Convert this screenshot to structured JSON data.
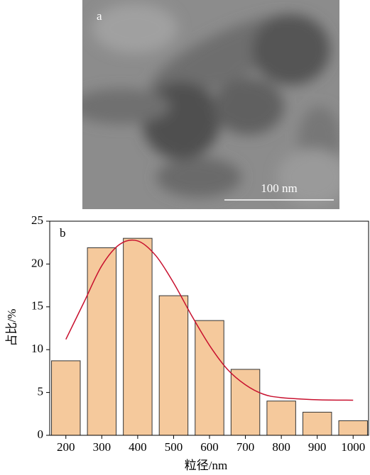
{
  "image": {
    "label": "a",
    "scale_bar": "100 nm"
  },
  "chart_data": {
    "type": "bar",
    "panel_label": "b",
    "x_label": "粒径/nm",
    "y_label": "占比/%",
    "x": [
      200,
      300,
      400,
      500,
      600,
      700,
      800,
      900,
      1000
    ],
    "values": [
      8.7,
      21.9,
      23.0,
      16.3,
      13.4,
      7.7,
      4.0,
      2.7,
      1.7
    ],
    "color": "#f5c99c",
    "curve": {
      "color": "#c8102e",
      "x": [
        200,
        250,
        300,
        350,
        400,
        450,
        500,
        550,
        600,
        650,
        700,
        750,
        800,
        900,
        1000
      ],
      "values": [
        11.2,
        15.5,
        19.8,
        22.3,
        22.7,
        21.0,
        17.8,
        14.0,
        10.5,
        7.7,
        5.9,
        4.8,
        4.4,
        4.15,
        4.1
      ]
    },
    "xlim": [
      155,
      1045
    ],
    "xticks": [
      200,
      300,
      400,
      500,
      600,
      700,
      800,
      900,
      1000
    ],
    "ylim": [
      0,
      25
    ],
    "yticks": [
      0,
      5,
      10,
      15,
      20,
      25
    ],
    "grid": false
  }
}
